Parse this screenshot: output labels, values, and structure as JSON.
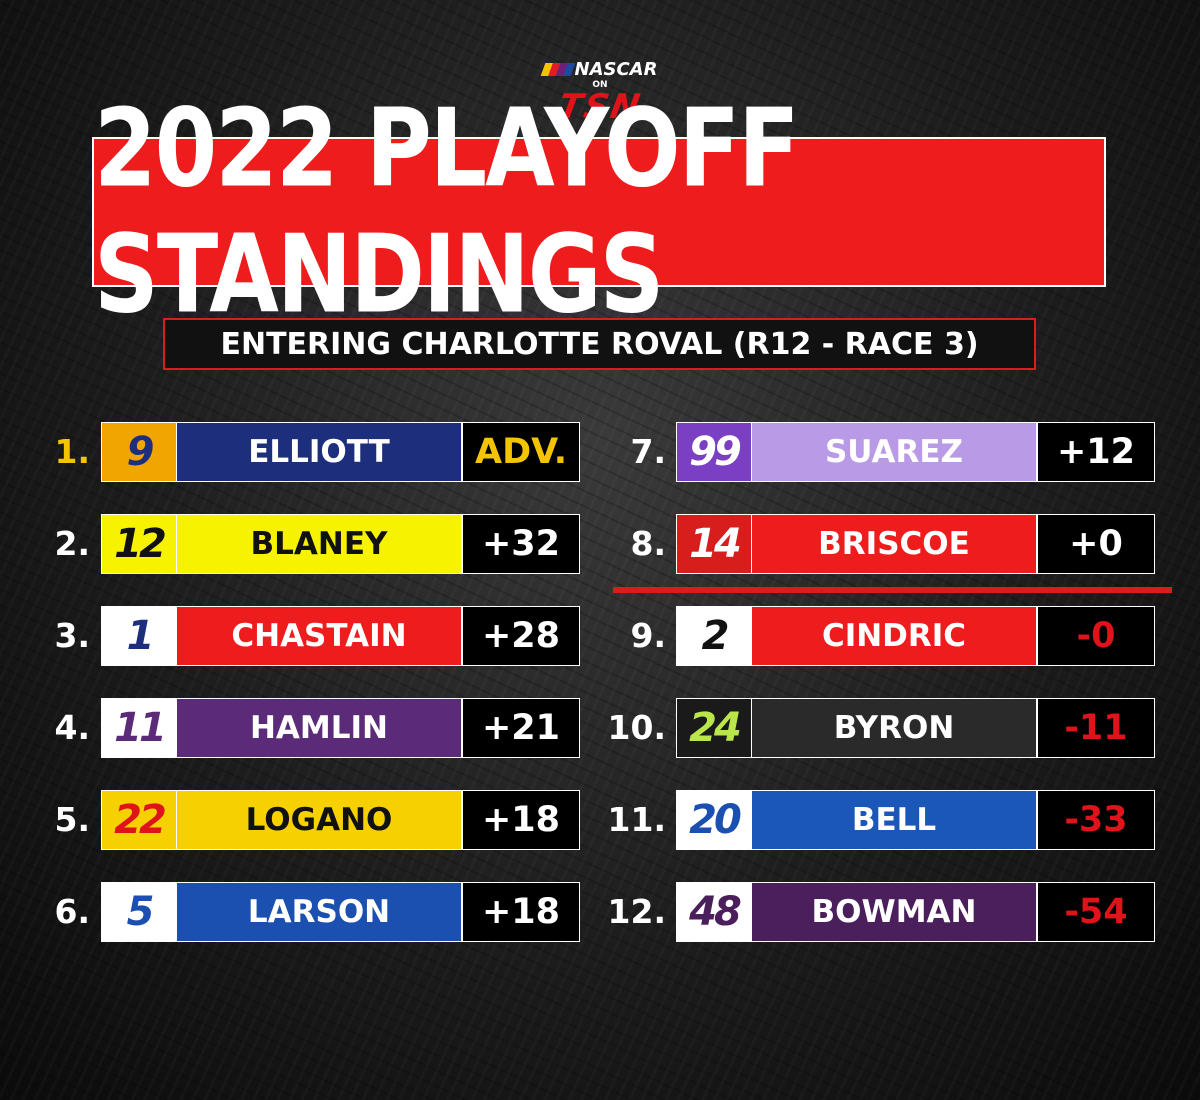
{
  "brand": {
    "league": "NASCAR",
    "on": "ON",
    "network": "TSN"
  },
  "title": "2022 PLAYOFF STANDINGS",
  "subtitle": "ENTERING CHARLOTTE ROVAL (R12 - RACE 3)",
  "colors": {
    "accent_red": "#ee1c1c",
    "leader_gold": "#f5c400",
    "negative_red": "#e0121a"
  },
  "standings": [
    {
      "pos": "1.",
      "car": "9",
      "driver": "ELLIOTT",
      "points": "ADV.",
      "name_bg": "#1d2f7c",
      "name_color": "#ffffff",
      "num_bg": "#f0a500",
      "num_color": "#1d2f7c",
      "pts_color": "#f5c400",
      "pos_color": "#f5c400"
    },
    {
      "pos": "2.",
      "car": "12",
      "driver": "BLANEY",
      "points": "+32",
      "name_bg": "#f7f300",
      "name_color": "#111111",
      "num_bg": "#f7f300",
      "num_color": "#111111",
      "pts_color": "#ffffff",
      "pos_color": "#ffffff"
    },
    {
      "pos": "3.",
      "car": "1",
      "driver": "CHASTAIN",
      "points": "+28",
      "name_bg": "#ee1c1c",
      "name_color": "#ffffff",
      "num_bg": "#ffffff",
      "num_color": "#1d2f7c",
      "pts_color": "#ffffff",
      "pos_color": "#ffffff"
    },
    {
      "pos": "4.",
      "car": "11",
      "driver": "HAMLIN",
      "points": "+21",
      "name_bg": "#5b2a78",
      "name_color": "#ffffff",
      "num_bg": "#ffffff",
      "num_color": "#5b2a78",
      "pts_color": "#ffffff",
      "pos_color": "#ffffff"
    },
    {
      "pos": "5.",
      "car": "22",
      "driver": "LOGANO",
      "points": "+18",
      "name_bg": "#f7d000",
      "name_color": "#111111",
      "num_bg": "#f7d000",
      "num_color": "#e0121a",
      "pts_color": "#ffffff",
      "pos_color": "#ffffff"
    },
    {
      "pos": "6.",
      "car": "5",
      "driver": "LARSON",
      "points": "+18",
      "name_bg": "#1b4fb0",
      "name_color": "#ffffff",
      "num_bg": "#ffffff",
      "num_color": "#1b4fb0",
      "pts_color": "#ffffff",
      "pos_color": "#ffffff"
    },
    {
      "pos": "7.",
      "car": "99",
      "driver": "SUAREZ",
      "points": "+12",
      "name_bg": "#b99ae6",
      "name_color": "#ffffff",
      "num_bg": "#7b3fc4",
      "num_color": "#ffffff",
      "pts_color": "#ffffff",
      "pos_color": "#ffffff"
    },
    {
      "pos": "8.",
      "car": "14",
      "driver": "BRISCOE",
      "points": "+0",
      "name_bg": "#ee1c1c",
      "name_color": "#ffffff",
      "num_bg": "#d81d1d",
      "num_color": "#ffffff",
      "pts_color": "#ffffff",
      "pos_color": "#ffffff"
    },
    {
      "pos": "9.",
      "car": "2",
      "driver": "CINDRIC",
      "points": "-0",
      "name_bg": "#ee1c1c",
      "name_color": "#ffffff",
      "num_bg": "#ffffff",
      "num_color": "#111111",
      "pts_color": "#e0121a",
      "pos_color": "#ffffff"
    },
    {
      "pos": "10.",
      "car": "24",
      "driver": "BYRON",
      "points": "-11",
      "name_bg": "#2a2a2a",
      "name_color": "#ffffff",
      "num_bg": "#1a1a1a",
      "num_color": "#b9e64a",
      "pts_color": "#e0121a",
      "pos_color": "#ffffff"
    },
    {
      "pos": "11.",
      "car": "20",
      "driver": "BELL",
      "points": "-33",
      "name_bg": "#1b57b8",
      "name_color": "#ffffff",
      "num_bg": "#ffffff",
      "num_color": "#1b4fb0",
      "pts_color": "#e0121a",
      "pos_color": "#ffffff"
    },
    {
      "pos": "12.",
      "car": "48",
      "driver": "BOWMAN",
      "points": "-54",
      "name_bg": "#4a1f5c",
      "name_color": "#ffffff",
      "num_bg": "#ffffff",
      "num_color": "#4a1f5c",
      "pts_color": "#e0121a",
      "pos_color": "#ffffff"
    }
  ]
}
